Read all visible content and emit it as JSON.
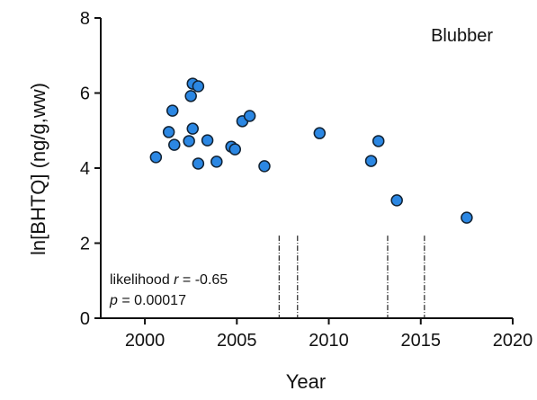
{
  "chart_data": {
    "type": "scatter",
    "panel_label": "Blubber",
    "annotation": {
      "line1": [
        "likelihood ",
        "r",
        " = -0.65"
      ],
      "line2": [
        "p",
        " = 0.00017"
      ]
    },
    "x_label": "Year",
    "y_label": "ln[BHTQ] (ng/g,ww)",
    "x": [
      2000.6,
      2001.3,
      2001.5,
      2001.6,
      2002.4,
      2002.5,
      2002.6,
      2002.6,
      2002.9,
      2002.9,
      2003.4,
      2003.9,
      2004.7,
      2004.9,
      2005.3,
      2005.7,
      2006.5,
      2009.5,
      2012.3,
      2012.7,
      2013.7,
      2017.5
    ],
    "y": [
      4.29,
      4.96,
      5.53,
      4.62,
      4.72,
      5.92,
      5.05,
      6.25,
      6.18,
      4.12,
      4.74,
      4.17,
      4.57,
      4.5,
      5.25,
      5.39,
      4.05,
      4.93,
      4.19,
      4.72,
      3.14,
      2.68
    ],
    "color": "#2b87e3",
    "vlines": [
      2007.3,
      2008.3,
      2013.2,
      2015.2
    ],
    "vline_top": 2.2,
    "xlim": [
      1997.6,
      2020
    ],
    "xticks": [
      2000,
      2005,
      2010,
      2015,
      2020
    ],
    "ylim": [
      0,
      8
    ],
    "yticks": [
      0,
      2,
      4,
      6,
      8
    ]
  }
}
